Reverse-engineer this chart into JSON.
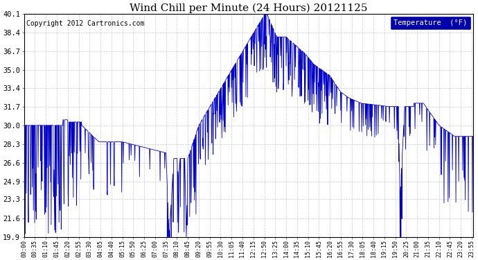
{
  "title": "Wind Chill per Minute (24 Hours) 20121125",
  "copyright": "Copyright 2012 Cartronics.com",
  "legend_label": "Temperature  (°F)",
  "yticks": [
    19.9,
    21.6,
    23.3,
    24.9,
    26.6,
    28.3,
    30.0,
    31.7,
    33.4,
    35.0,
    36.7,
    38.4,
    40.1
  ],
  "ylim": [
    19.9,
    40.1
  ],
  "line_color": "#0000CC",
  "background_color": "#ffffff",
  "grid_color": "#bbbbbb",
  "title_fontsize": 11,
  "legend_bg": "#0000AA",
  "legend_fg": "#ffffff",
  "total_minutes": 1440
}
